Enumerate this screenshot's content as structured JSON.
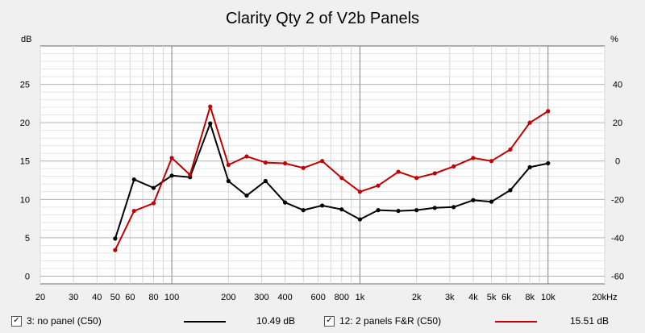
{
  "chart_data": {
    "type": "line",
    "title": "Clarity Qty 2 of V2b Panels",
    "xscale": "log",
    "xlim": [
      20,
      20000
    ],
    "ylim_left": [
      -1,
      30
    ],
    "ylim_right": [
      -64,
      60
    ],
    "y_left_unit": "dB",
    "y_right_unit": "%",
    "grid": true,
    "x_ticks": [
      {
        "value": 20,
        "label": "20"
      },
      {
        "value": 30,
        "label": "30"
      },
      {
        "value": 40,
        "label": "40"
      },
      {
        "value": 50,
        "label": "50"
      },
      {
        "value": 60,
        "label": "60"
      },
      {
        "value": 80,
        "label": "80"
      },
      {
        "value": 100,
        "label": "100"
      },
      {
        "value": 200,
        "label": "200"
      },
      {
        "value": 300,
        "label": "300"
      },
      {
        "value": 400,
        "label": "400"
      },
      {
        "value": 600,
        "label": "600"
      },
      {
        "value": 800,
        "label": "800"
      },
      {
        "value": 1000,
        "label": "1k"
      },
      {
        "value": 2000,
        "label": "2k"
      },
      {
        "value": 3000,
        "label": "3k"
      },
      {
        "value": 4000,
        "label": "4k"
      },
      {
        "value": 5000,
        "label": "5k"
      },
      {
        "value": 6000,
        "label": "6k"
      },
      {
        "value": 8000,
        "label": "8k"
      },
      {
        "value": 10000,
        "label": "10k"
      },
      {
        "value": 20000,
        "label": "20kHz"
      }
    ],
    "y_left_ticks": [
      0,
      5,
      10,
      15,
      20,
      25
    ],
    "y_right_ticks": [
      -60,
      -40,
      -20,
      0,
      20,
      40
    ],
    "series": [
      {
        "name": "3: no panel (C50)",
        "color": "#000000",
        "legend_value": "10.49 dB",
        "x": [
          50,
          63,
          80,
          100,
          125,
          160,
          200,
          250,
          315,
          400,
          500,
          630,
          800,
          1000,
          1250,
          1600,
          2000,
          2500,
          3150,
          4000,
          5000,
          6300,
          8000,
          10000
        ],
        "y": [
          4.9,
          12.6,
          11.5,
          13.1,
          12.9,
          19.9,
          12.4,
          10.5,
          12.4,
          9.6,
          8.6,
          9.2,
          8.7,
          7.4,
          8.6,
          8.5,
          8.6,
          8.9,
          9.0,
          9.9,
          9.7,
          11.2,
          14.2,
          14.7
        ]
      },
      {
        "name": "12: 2 panels F&R (C50)",
        "color": "#c00000",
        "legend_value": "15.51 dB",
        "x": [
          50,
          63,
          80,
          100,
          125,
          160,
          200,
          250,
          315,
          400,
          500,
          630,
          800,
          1000,
          1250,
          1600,
          2000,
          2500,
          3150,
          4000,
          5000,
          6300,
          8000,
          10000
        ],
        "y": [
          3.4,
          8.5,
          9.5,
          15.4,
          13.2,
          22.1,
          14.5,
          15.6,
          14.8,
          14.7,
          14.1,
          15.0,
          12.8,
          11.0,
          11.8,
          13.6,
          12.8,
          13.4,
          14.3,
          15.4,
          15.0,
          16.5,
          20.0,
          21.5
        ]
      }
    ]
  },
  "legend": {
    "items": [
      {
        "check": "✓",
        "label": "3: no panel (C50)",
        "value": "10.49 dB",
        "color": "#000000"
      },
      {
        "check": "✓",
        "label": "12: 2 panels F&R (C50)",
        "value": "15.51 dB",
        "color": "#c00000"
      }
    ]
  }
}
